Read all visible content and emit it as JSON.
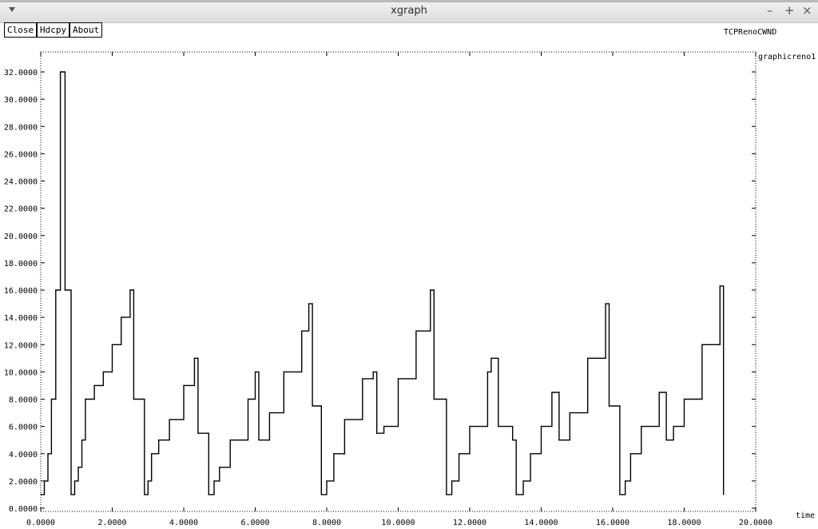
{
  "window": {
    "title": "xgraph"
  },
  "buttons": {
    "close": "Close",
    "hdcpy": "Hdcpy",
    "about": "About"
  },
  "chart_data": {
    "type": "line",
    "title": "TCPRenoCWND",
    "xlabel": "time",
    "ylabel": "",
    "xlim": [
      0,
      20
    ],
    "ylim": [
      0,
      32
    ],
    "grid": false,
    "legend": "right",
    "x_ticks": [
      "0.0000",
      "2.0000",
      "4.0000",
      "6.0000",
      "8.0000",
      "10.0000",
      "12.0000",
      "14.0000",
      "16.0000",
      "18.0000",
      "20.0000"
    ],
    "y_ticks": [
      "0.0000",
      "2.0000",
      "4.0000",
      "6.0000",
      "8.0000",
      "10.0000",
      "12.0000",
      "14.0000",
      "16.0000",
      "18.0000",
      "20.0000",
      "22.0000",
      "24.0000",
      "26.0000",
      "28.0000",
      "30.0000",
      "32.0000"
    ],
    "series": [
      {
        "name": "graphicreno1",
        "points": [
          [
            0,
            1
          ],
          [
            0.1,
            2
          ],
          [
            0.2,
            4
          ],
          [
            0.3,
            8
          ],
          [
            0.42,
            16
          ],
          [
            0.55,
            32
          ],
          [
            0.68,
            16
          ],
          [
            0.85,
            1
          ],
          [
            0.95,
            2
          ],
          [
            1.05,
            3
          ],
          [
            1.15,
            5
          ],
          [
            1.25,
            8
          ],
          [
            1.5,
            9
          ],
          [
            1.75,
            10
          ],
          [
            2.0,
            12
          ],
          [
            2.25,
            14
          ],
          [
            2.5,
            16
          ],
          [
            2.6,
            8
          ],
          [
            2.9,
            1
          ],
          [
            3.0,
            2
          ],
          [
            3.1,
            4
          ],
          [
            3.3,
            5
          ],
          [
            3.6,
            6.5
          ],
          [
            4.0,
            9
          ],
          [
            4.3,
            11
          ],
          [
            4.4,
            5.5
          ],
          [
            4.7,
            1
          ],
          [
            4.85,
            2
          ],
          [
            5.0,
            3
          ],
          [
            5.3,
            5
          ],
          [
            5.8,
            8
          ],
          [
            6.0,
            10
          ],
          [
            6.1,
            5
          ],
          [
            6.4,
            7
          ],
          [
            6.8,
            10
          ],
          [
            7.3,
            13
          ],
          [
            7.5,
            15
          ],
          [
            7.6,
            7.5
          ],
          [
            7.85,
            1
          ],
          [
            8.0,
            2
          ],
          [
            8.2,
            4
          ],
          [
            8.5,
            6.5
          ],
          [
            9.0,
            9.5
          ],
          [
            9.3,
            10
          ],
          [
            9.4,
            5.5
          ],
          [
            9.6,
            6
          ],
          [
            10.0,
            9.5
          ],
          [
            10.5,
            13
          ],
          [
            10.9,
            16
          ],
          [
            11.0,
            8
          ],
          [
            11.35,
            1
          ],
          [
            11.5,
            2
          ],
          [
            11.7,
            4
          ],
          [
            12.0,
            6
          ],
          [
            12.5,
            10
          ],
          [
            12.6,
            11
          ],
          [
            12.8,
            6
          ],
          [
            13.2,
            5
          ],
          [
            13.3,
            1
          ],
          [
            13.5,
            2
          ],
          [
            13.7,
            4
          ],
          [
            14.0,
            6
          ],
          [
            14.3,
            8.5
          ],
          [
            14.5,
            5
          ],
          [
            14.8,
            7
          ],
          [
            15.3,
            11
          ],
          [
            15.8,
            15
          ],
          [
            15.9,
            7.5
          ],
          [
            16.2,
            1
          ],
          [
            16.35,
            2
          ],
          [
            16.5,
            4
          ],
          [
            16.8,
            6
          ],
          [
            17.3,
            8.5
          ],
          [
            17.5,
            5
          ],
          [
            17.7,
            6
          ],
          [
            18.0,
            8
          ],
          [
            18.5,
            12
          ],
          [
            19.0,
            16.3
          ],
          [
            19.1,
            1
          ]
        ]
      }
    ]
  }
}
